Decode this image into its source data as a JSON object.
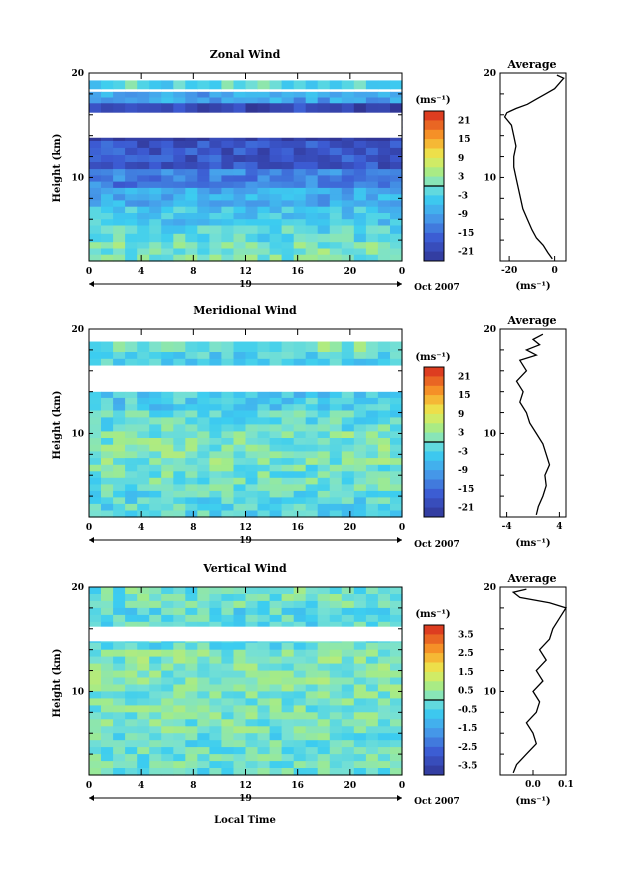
{
  "figure": {
    "date_label": "Oct 2007",
    "day_label": "19",
    "xlabel_bottom": "Local Time"
  },
  "chart_data": [
    {
      "type": "heatmap",
      "title": "Zonal Wind",
      "xlabel": "",
      "ylabel": "Height (km)",
      "x_ticks": [
        "0",
        "4",
        "8",
        "12",
        "16",
        "20",
        "0"
      ],
      "xlim": [
        0,
        24
      ],
      "ylim": [
        2,
        20
      ],
      "y_ticks": [
        "10",
        "20"
      ],
      "colorbar": {
        "label": "(ms⁻¹)",
        "range": [
          -24,
          24
        ],
        "ticks": [
          "21",
          "15",
          "9",
          "3",
          "-3",
          "-9",
          "-15",
          "-21"
        ]
      },
      "bands": [
        {
          "y0": 18.5,
          "y1": 19.3,
          "value": -2
        },
        {
          "y0": 17.1,
          "y1": 18.2,
          "value": -9
        },
        {
          "y0": 16.2,
          "y1": 17.1,
          "value": -20
        },
        {
          "y0": 13.5,
          "y1": 16.2,
          "value": -23
        },
        {
          "y0": 10.8,
          "y1": 13.5,
          "value": -18
        },
        {
          "y0": 9.0,
          "y1": 10.8,
          "value": -13
        },
        {
          "y0": 7.2,
          "y1": 9.0,
          "value": -8
        },
        {
          "y0": 5.4,
          "y1": 7.2,
          "value": -5
        },
        {
          "y0": 3.8,
          "y1": 5.4,
          "value": -2
        },
        {
          "y0": 2.0,
          "y1": 3.8,
          "value": 1
        }
      ],
      "gaps": [
        [
          19.3,
          20.0
        ],
        [
          13.8,
          16.2
        ]
      ],
      "profile": {
        "title": "Average",
        "xlabel": "(ms⁻¹)",
        "xlim": [
          -24,
          5
        ],
        "x_ticks": [
          "-20",
          "0"
        ],
        "y_ticks": [
          "10",
          "20"
        ],
        "height": [
          2.2,
          2.8,
          3.5,
          4.2,
          5.0,
          6.0,
          7.0,
          8.0,
          9.0,
          10.0,
          11.0,
          12.0,
          13.0,
          14.0,
          15.0,
          15.8,
          16.2,
          16.6,
          17.0,
          17.5,
          18.0,
          18.5,
          19.0,
          19.5,
          19.8
        ],
        "values": [
          -1,
          -3,
          -5,
          -8,
          -10,
          -12,
          -14,
          -15,
          -16,
          -17,
          -18,
          -18,
          -17,
          -18,
          -19,
          -22,
          -21,
          -17,
          -12,
          -8,
          -4,
          0,
          2,
          4,
          1
        ]
      }
    },
    {
      "type": "heatmap",
      "title": "Meridional Wind",
      "xlabel": "",
      "ylabel": "Height (km)",
      "x_ticks": [
        "0",
        "4",
        "8",
        "12",
        "16",
        "20",
        "0"
      ],
      "xlim": [
        0,
        24
      ],
      "ylim": [
        2,
        20
      ],
      "y_ticks": [
        "10",
        "20"
      ],
      "colorbar": {
        "label": "(ms⁻¹)",
        "range": [
          -24,
          24
        ],
        "ticks": [
          "21",
          "15",
          "9",
          "3",
          "-3",
          "-9",
          "-15",
          "-21"
        ]
      },
      "bands": [
        {
          "y0": 17.8,
          "y1": 18.8,
          "value": 1
        },
        {
          "y0": 16.5,
          "y1": 17.8,
          "value": -3
        },
        {
          "y0": 12.2,
          "y1": 14.0,
          "value": -4
        },
        {
          "y0": 10.2,
          "y1": 12.2,
          "value": -1
        },
        {
          "y0": 7.0,
          "y1": 10.2,
          "value": 1
        },
        {
          "y0": 4.5,
          "y1": 7.0,
          "value": 0
        },
        {
          "y0": 2.0,
          "y1": 4.5,
          "value": -2
        }
      ],
      "gaps": [
        [
          18.8,
          20.0
        ],
        [
          14.0,
          16.5
        ]
      ],
      "profile": {
        "title": "Average",
        "xlabel": "(ms⁻¹)",
        "xlim": [
          -5,
          5
        ],
        "x_ticks": [
          "-4",
          "4"
        ],
        "y_ticks": [
          "10",
          "20"
        ],
        "height": [
          2.2,
          3.0,
          4.0,
          5.0,
          6.0,
          7.0,
          8.0,
          9.0,
          10.0,
          11.0,
          12.0,
          13.0,
          14.0,
          15.0,
          16.0,
          17.0,
          17.5,
          18.0,
          18.5,
          19.0,
          19.5
        ],
        "values": [
          0.5,
          0.8,
          1.5,
          2.0,
          1.8,
          2.5,
          2.0,
          1.5,
          0.5,
          -0.5,
          -1.0,
          -2.0,
          -1.5,
          -2.5,
          -1.0,
          -2.0,
          0.5,
          -1.0,
          1.0,
          0.0,
          1.5
        ]
      }
    },
    {
      "type": "heatmap",
      "title": "Vertical Wind",
      "xlabel": "Local Time",
      "ylabel": "Height (km)",
      "x_ticks": [
        "0",
        "4",
        "8",
        "12",
        "16",
        "20",
        "0"
      ],
      "xlim": [
        0,
        24
      ],
      "ylim": [
        2,
        20
      ],
      "y_ticks": [
        "10",
        "20"
      ],
      "colorbar": {
        "label": "(ms⁻¹)",
        "range": [
          -4,
          4
        ],
        "ticks": [
          "3.5",
          "2.5",
          "1.5",
          "0.5",
          "-0.5",
          "-1.5",
          "-2.5",
          "-3.5"
        ]
      },
      "bands": [
        {
          "y0": 18.0,
          "y1": 20.0,
          "value": 0.0
        },
        {
          "y0": 14.0,
          "y1": 18.0,
          "value": -0.3
        },
        {
          "y0": 10.0,
          "y1": 14.0,
          "value": 0.2
        },
        {
          "y0": 6.0,
          "y1": 10.0,
          "value": 0.1
        },
        {
          "y0": 2.0,
          "y1": 6.0,
          "value": -0.1
        }
      ],
      "gaps": [
        [
          14.8,
          16.2
        ]
      ],
      "profile": {
        "title": "Average",
        "xlabel": "(ms⁻¹)",
        "xlim": [
          -0.1,
          0.1
        ],
        "x_ticks": [
          "0.0",
          "0.1"
        ],
        "y_ticks": [
          "10",
          "20"
        ],
        "height": [
          2.2,
          3.0,
          4.0,
          5.0,
          6.0,
          7.0,
          8.0,
          9.0,
          10.0,
          11.0,
          12.0,
          13.0,
          14.0,
          15.0,
          16.0,
          17.0,
          18.0,
          18.5,
          19.0,
          19.5,
          19.8
        ],
        "values": [
          -0.06,
          -0.05,
          -0.02,
          0.01,
          0.0,
          -0.02,
          0.01,
          0.02,
          0.0,
          0.03,
          0.01,
          0.04,
          0.02,
          0.05,
          0.06,
          0.08,
          0.1,
          0.05,
          -0.04,
          -0.06,
          -0.02
        ]
      }
    }
  ]
}
